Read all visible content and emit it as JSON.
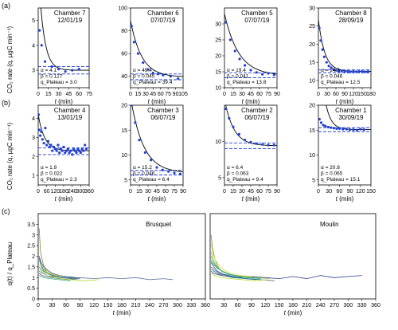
{
  "panel_labels": {
    "a": "(a)",
    "b": "(b)",
    "c": "(c)"
  },
  "row_ylabel": "CO₂ rate (q, µgC min⁻¹)",
  "xlabel_t": "t",
  "xlabel_unit": "(min)",
  "row_c_ylabel": "q(t) / q_Plateau",
  "colors": {
    "fit": "#000000",
    "points": "#1f3fd6",
    "plateau": "#1f3fd6"
  },
  "chart_data": [
    {
      "type": "scatter",
      "row": 0,
      "col": 0,
      "chamber": "Chamber 7",
      "date": "12/01/19",
      "xlim": [
        0,
        75
      ],
      "xticks": [
        0,
        15,
        30,
        45,
        60,
        75
      ],
      "ylim": [
        2.3,
        5.5
      ],
      "yticks": [
        3,
        4,
        5
      ],
      "params": {
        "alpha": 4.1,
        "beta": 0.127,
        "q_plateau": 3.0
      },
      "plateau_band": [
        2.85,
        3.15
      ],
      "param_text": [
        "α = 4.1",
        "β = 0.127",
        "q_Plateau = 3.0"
      ],
      "x": [
        2,
        5,
        10,
        20,
        30,
        40,
        50,
        60
      ],
      "y": [
        4.6,
        4.0,
        3.35,
        3.15,
        3.05,
        2.95,
        3.0,
        3.05
      ]
    },
    {
      "type": "scatter",
      "row": 0,
      "col": 1,
      "chamber": "Chamber 6",
      "date": "07/07/19",
      "xlim": [
        0,
        105
      ],
      "xticks": [
        0,
        15,
        30,
        45,
        60,
        75,
        90,
        105
      ],
      "ylim": [
        30,
        100
      ],
      "yticks": [
        40,
        60,
        80,
        100
      ],
      "params": {
        "alpha": 49.4,
        "beta": 0.045,
        "q_plateau": 39.4
      },
      "plateau_band": [
        37,
        42
      ],
      "param_text": [
        "α = 49.4",
        "β = 0.045",
        "q_Plateau = 39.4"
      ],
      "x": [
        2,
        7,
        15,
        25,
        35,
        45,
        55,
        65,
        80,
        95
      ],
      "y": [
        84,
        70,
        60,
        52,
        46,
        43,
        42,
        41,
        40,
        38
      ]
    },
    {
      "type": "scatter",
      "row": 0,
      "col": 2,
      "chamber": "Chamber 5",
      "date": "07/07/19",
      "xlim": [
        0,
        90
      ],
      "xticks": [
        0,
        15,
        30,
        45,
        60,
        75,
        90
      ],
      "ylim": [
        10,
        35
      ],
      "yticks": [
        10,
        15,
        20,
        25,
        30
      ],
      "params": {
        "alpha": 19.4,
        "beta": 0.041,
        "q_plateau": 13.8
      },
      "plateau_band": [
        13.1,
        14.6
      ],
      "param_text": [
        "α = 19.4",
        "β = 0.041",
        "q_Plateau = 13.8"
      ],
      "x": [
        2,
        10,
        18,
        26,
        35,
        45,
        55,
        65,
        75,
        85
      ],
      "y": [
        30.5,
        25,
        21.5,
        19,
        17,
        15.5,
        14.8,
        14.2,
        14.5,
        14.0
      ]
    },
    {
      "type": "scatter",
      "row": 0,
      "col": 3,
      "chamber": "Chamber 8",
      "date": "28/09/19",
      "xlim": [
        0,
        180
      ],
      "xticks": [
        0,
        30,
        60,
        90,
        120,
        150,
        180
      ],
      "ylim": [
        8,
        30
      ],
      "yticks": [
        10,
        15,
        20,
        25,
        30
      ],
      "params": {
        "alpha": 14.3,
        "beta": 0.046,
        "q_plateau": 12.5
      },
      "plateau_band": [
        12.1,
        12.9
      ],
      "param_text": [
        "α = 14.3",
        "β = 0.046",
        "q_Plateau = 12.5"
      ],
      "x": [
        3,
        8,
        14,
        20,
        28,
        36,
        44,
        52,
        60,
        70,
        80,
        90,
        100,
        110,
        120,
        130,
        140,
        150,
        160,
        170
      ],
      "y": [
        24.5,
        21,
        18.5,
        16.5,
        15,
        14,
        13.5,
        13,
        12.8,
        12.6,
        12.6,
        12.5,
        12.5,
        12.4,
        12.5,
        12.4,
        12.5,
        12.5,
        12.4,
        12.5
      ]
    },
    {
      "type": "scatter",
      "row": 1,
      "col": 0,
      "chamber": "Chamber 4",
      "date": "13/01/19",
      "xlim": [
        0,
        360
      ],
      "xticks": [
        0,
        60,
        120,
        180,
        240,
        300,
        360
      ],
      "ylim": [
        0.5,
        4.7
      ],
      "yticks": [
        1,
        2,
        3,
        4
      ],
      "params": {
        "alpha": 1.9,
        "beta": 0.022,
        "q_plateau": 2.3
      },
      "plateau_band": [
        2.1,
        2.45
      ],
      "param_text": [
        "α = 1.9",
        "β = 0.022",
        "q_Plateau = 2.3"
      ],
      "x": [
        3,
        8,
        15,
        22,
        30,
        40,
        50,
        60,
        70,
        80,
        90,
        100,
        110,
        120,
        130,
        140,
        150,
        160,
        170,
        180,
        190,
        200,
        210,
        220,
        230,
        240,
        250,
        260,
        270,
        280,
        290,
        300,
        310,
        320,
        330,
        340
      ],
      "y": [
        4.2,
        3.4,
        3.1,
        3.3,
        2.9,
        2.7,
        3.5,
        2.6,
        2.8,
        2.5,
        2.6,
        2.3,
        2.5,
        2.4,
        2.3,
        2.6,
        2.2,
        2.4,
        2.3,
        2.5,
        2.2,
        2.3,
        2.4,
        2.2,
        2.3,
        2.1,
        2.4,
        2.3,
        2.2,
        2.4,
        2.3,
        2.2,
        2.4,
        2.3,
        2.6,
        2.4
      ]
    },
    {
      "type": "scatter",
      "row": 1,
      "col": 1,
      "chamber": "Chamber 3",
      "date": "06/07/19",
      "xlim": [
        0,
        90
      ],
      "xticks": [
        0,
        15,
        30,
        45,
        60,
        75,
        90
      ],
      "ylim": [
        4,
        20
      ],
      "yticks": [
        5,
        10,
        15,
        20
      ],
      "params": {
        "alpha": 15.2,
        "beta": 0.046,
        "q_plateau": 6.4
      },
      "plateau_band": [
        6.0,
        6.9
      ],
      "param_text": [
        "α = 15.2",
        "β = 0.046",
        "q_Plateau = 6.4"
      ],
      "x": [
        2,
        8,
        15,
        25,
        35,
        45,
        55,
        65,
        75,
        85
      ],
      "y": [
        20,
        16.5,
        13,
        10.5,
        9,
        7.5,
        7,
        6.7,
        6.4,
        6.2
      ]
    },
    {
      "type": "scatter",
      "row": 1,
      "col": 2,
      "chamber": "Chamber 2",
      "date": "06/07/19",
      "xlim": [
        0,
        90
      ],
      "xticks": [
        0,
        15,
        30,
        45,
        60,
        75,
        90
      ],
      "ylim": [
        4,
        15
      ],
      "yticks": [
        5,
        10
      ],
      "params": {
        "alpha": 6.4,
        "beta": 0.063,
        "q_plateau": 9.4
      },
      "plateau_band": [
        9.0,
        9.8
      ],
      "param_text": [
        "α = 6.4",
        "β = 0.063",
        "q_Plateau = 9.4"
      ],
      "x": [
        2,
        8,
        15,
        25,
        35,
        45,
        55,
        65,
        75,
        85
      ],
      "y": [
        14.5,
        13.2,
        12,
        11,
        10.2,
        9.9,
        9.7,
        9.6,
        9.5,
        9.5
      ]
    },
    {
      "type": "scatter",
      "row": 1,
      "col": 3,
      "chamber": "Chamber 1",
      "date": "30/09/19",
      "xlim": [
        0,
        150
      ],
      "xticks": [
        0,
        30,
        60,
        90,
        120,
        150
      ],
      "ylim": [
        4,
        20
      ],
      "yticks": [
        5,
        10,
        15,
        20
      ],
      "params": {
        "alpha": 20.8,
        "beta": 0.065,
        "q_plateau": 15.1
      },
      "plateau_band": [
        14.7,
        15.5
      ],
      "param_text": [
        "α = 20.8",
        "β = 0.065",
        "q_Plateau = 15.1"
      ],
      "x": [
        3,
        8,
        14,
        20,
        28,
        36,
        44,
        52,
        60,
        70,
        80,
        90,
        100,
        110,
        120,
        130
      ],
      "y": [
        17.2,
        16.5,
        16.0,
        15.8,
        15.6,
        15.5,
        15.4,
        15.3,
        15.3,
        15.2,
        15.2,
        15.1,
        15.1,
        15.0,
        15.2,
        15.1
      ]
    },
    {
      "type": "line",
      "panel": "c1",
      "site": "Brusquet",
      "xlim": [
        0,
        360
      ],
      "xticks": [
        0,
        30,
        60,
        90,
        120,
        150,
        180,
        210,
        240,
        270,
        300,
        330,
        360
      ],
      "ylim": [
        0,
        4
      ],
      "yticks": [
        0.0,
        0.5,
        1.0,
        1.5,
        2.0,
        2.5,
        3.0,
        3.5
      ],
      "series": [
        {
          "x": [
            2,
            5,
            10,
            15,
            20,
            30,
            40,
            60,
            90
          ],
          "y": [
            3.3,
            2.2,
            1.7,
            1.4,
            1.25,
            1.1,
            1.05,
            1.0,
            1.0
          ]
        },
        {
          "x": [
            2,
            6,
            12,
            20,
            30,
            45,
            60,
            80
          ],
          "y": [
            2.0,
            1.7,
            1.5,
            1.35,
            1.2,
            1.1,
            1.05,
            1.0
          ]
        },
        {
          "x": [
            2,
            6,
            12,
            20,
            30,
            45,
            60
          ],
          "y": [
            1.8,
            1.6,
            1.4,
            1.25,
            1.15,
            1.05,
            1.0
          ]
        },
        {
          "x": [
            2,
            8,
            15,
            25,
            40,
            55
          ],
          "y": [
            1.6,
            1.45,
            1.3,
            1.2,
            1.1,
            1.05
          ]
        },
        {
          "x": [
            2,
            8,
            15,
            25,
            40,
            60,
            80
          ],
          "y": [
            1.5,
            1.35,
            1.25,
            1.15,
            1.05,
            1.0,
            0.95
          ]
        },
        {
          "x": [
            2,
            10,
            20,
            35,
            50,
            70,
            90,
            120,
            150,
            180,
            210,
            240,
            270,
            290
          ],
          "y": [
            1.3,
            1.2,
            1.1,
            1.05,
            1.0,
            0.95,
            1.0,
            0.95,
            1.0,
            0.95,
            1.0,
            0.9,
            0.95,
            0.9
          ]
        },
        {
          "x": [
            2,
            8,
            16,
            30,
            45,
            65,
            90
          ],
          "y": [
            1.2,
            1.1,
            1.05,
            1.0,
            0.95,
            0.9,
            0.95
          ]
        },
        {
          "x": [
            2,
            10,
            20,
            35,
            50,
            70,
            100,
            130
          ],
          "y": [
            1.4,
            1.25,
            1.1,
            1.0,
            0.95,
            0.9,
            0.85,
            0.9
          ]
        },
        {
          "x": [
            2,
            10,
            25,
            45,
            70
          ],
          "y": [
            1.1,
            1.0,
            0.95,
            0.9,
            0.85
          ]
        },
        {
          "x": [
            2,
            6,
            12,
            25,
            40,
            60,
            85
          ],
          "y": [
            1.9,
            1.6,
            1.3,
            1.15,
            1.05,
            1.0,
            0.95
          ]
        }
      ]
    },
    {
      "type": "line",
      "panel": "c2",
      "site": "Moulin",
      "xlim": [
        0,
        360
      ],
      "xticks": [
        30,
        60,
        90,
        120,
        150,
        180,
        210,
        240,
        270,
        300,
        330,
        360
      ],
      "ylim": [
        0,
        4
      ],
      "yticks": [],
      "series": [
        {
          "x": [
            2,
            5,
            10,
            15,
            20,
            30,
            40,
            55,
            75,
            100
          ],
          "y": [
            3.0,
            2.4,
            1.9,
            1.6,
            1.4,
            1.25,
            1.15,
            1.1,
            1.05,
            1.0
          ]
        },
        {
          "x": [
            2,
            8,
            15,
            25,
            40,
            60,
            90,
            120,
            150,
            180,
            210,
            240,
            270,
            300,
            330
          ],
          "y": [
            1.3,
            1.2,
            1.15,
            1.1,
            1.05,
            1.0,
            1.05,
            1.0,
            0.95,
            1.05,
            0.95,
            1.1,
            1.0,
            1.05,
            1.1
          ]
        },
        {
          "x": [
            2,
            6,
            12,
            20,
            35,
            50,
            70,
            100,
            130
          ],
          "y": [
            2.2,
            1.9,
            1.6,
            1.4,
            1.2,
            1.1,
            1.05,
            1.0,
            0.95
          ]
        },
        {
          "x": [
            2,
            6,
            12,
            20,
            30,
            45,
            65,
            90
          ],
          "y": [
            2.6,
            2.1,
            1.8,
            1.55,
            1.35,
            1.2,
            1.1,
            1.05
          ]
        },
        {
          "x": [
            2,
            8,
            15,
            25,
            40,
            60,
            80,
            110
          ],
          "y": [
            1.8,
            1.6,
            1.45,
            1.3,
            1.15,
            1.05,
            1.0,
            0.95
          ]
        },
        {
          "x": [
            2,
            10,
            20,
            35,
            55,
            80,
            110,
            140
          ],
          "y": [
            1.5,
            1.35,
            1.2,
            1.1,
            1.0,
            0.95,
            0.9,
            0.85
          ]
        },
        {
          "x": [
            2,
            8,
            16,
            30,
            50,
            75,
            100
          ],
          "y": [
            1.7,
            1.5,
            1.3,
            1.15,
            1.05,
            0.95,
            0.9
          ]
        },
        {
          "x": [
            2,
            10,
            25,
            45,
            70,
            95,
            125
          ],
          "y": [
            1.2,
            1.1,
            1.0,
            0.95,
            0.9,
            0.85,
            0.9
          ]
        },
        {
          "x": [
            2,
            6,
            14,
            26,
            44,
            66,
            90
          ],
          "y": [
            2.0,
            1.75,
            1.5,
            1.3,
            1.15,
            1.05,
            1.0
          ]
        },
        {
          "x": [
            2,
            12,
            28,
            50,
            80,
            110
          ],
          "y": [
            1.4,
            1.25,
            1.1,
            1.0,
            0.95,
            0.9
          ]
        }
      ]
    }
  ]
}
